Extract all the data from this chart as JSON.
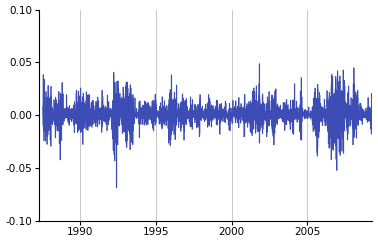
{
  "title": "",
  "xlim": [
    1987.3,
    2009.3
  ],
  "ylim": [
    -0.1,
    0.1
  ],
  "yticks": [
    -0.1,
    -0.05,
    0.0,
    0.05,
    0.1
  ],
  "xticks": [
    1990,
    1995,
    2000,
    2005
  ],
  "line_color": "#3d4db5",
  "line_color_light": "#8899cc",
  "background_color": "#ffffff",
  "grid_color": "#c8c8c8",
  "n_days": 5700,
  "start_year": 1987.55,
  "seed": 12345,
  "kappa": 4.0,
  "theta": 0.0225,
  "sigma": 0.6,
  "rho": -0.75,
  "v0": 0.08,
  "mu": 0.0002,
  "line_width": 0.5
}
